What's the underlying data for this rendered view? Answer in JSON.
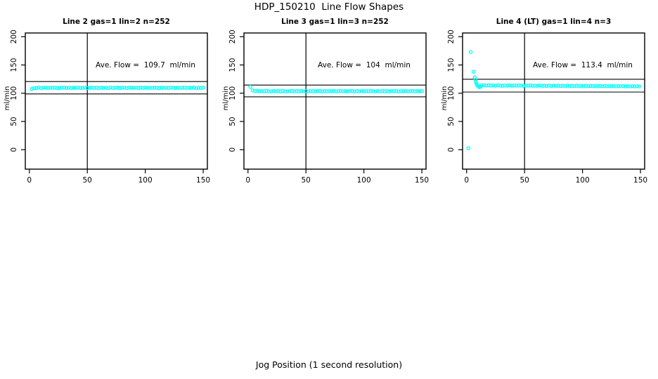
{
  "title": "HDP_150210  Line Flow Shapes",
  "xlabel": "Jog Position (1 second resolution)",
  "chart_data": [
    {
      "type": "scatter",
      "title": "Line 2 gas=1 lin=2 n=252",
      "ave_flow": 109.7,
      "ave_flow_text": "Ave. Flow =  109.7  ml/min",
      "ylabel": "ml/min",
      "x_ticks": [
        0,
        50,
        100,
        150
      ],
      "y_ticks": [
        0,
        50,
        100,
        150,
        200
      ],
      "xlim": [
        -3.5,
        153.6
      ],
      "ylim": [
        -34.4,
        206.6
      ],
      "vline_x": 50,
      "ref_lines": [
        120.7,
        98.7
      ],
      "point_color": "#00FFFF",
      "legend": null,
      "grid": false,
      "series": {
        "x_start": 2,
        "x_step": 2,
        "y": [
          107.5,
          109.0,
          109.3,
          109.8,
          109.0,
          109.6,
          109.9,
          109.2,
          109.7,
          109.3,
          110.0,
          109.4,
          109.0,
          109.7,
          109.9,
          109.3,
          109.6,
          109.1,
          109.8,
          109.4,
          110.0,
          109.2,
          109.6,
          109.9,
          109.1,
          109.5,
          109.8,
          109.3,
          109.7,
          109.0,
          109.9,
          109.4,
          109.6,
          109.1,
          110.0,
          109.3,
          109.7,
          109.8,
          109.2,
          109.6,
          109.9,
          109.1,
          109.5,
          110.0,
          109.3,
          109.7,
          109.2,
          109.8,
          109.4,
          110.0,
          109.1,
          109.6,
          109.3,
          109.9,
          109.5,
          109.0,
          109.8,
          109.4,
          109.7,
          109.2,
          110.0,
          109.5,
          109.1,
          109.8,
          109.3,
          109.7,
          109.9,
          109.2,
          109.6,
          109.4,
          110.0,
          109.1,
          109.7,
          109.4,
          109.8
        ]
      },
      "extra_points": []
    },
    {
      "type": "scatter",
      "title": "Line 3 gas=1 lin=3 n=252",
      "ave_flow": 104,
      "ave_flow_text": "Ave. Flow =  104  ml/min",
      "ylabel": "ml/min",
      "x_ticks": [
        0,
        50,
        100,
        150
      ],
      "y_ticks": [
        0,
        50,
        100,
        150,
        200
      ],
      "xlim": [
        -3.5,
        153.6
      ],
      "ylim": [
        -34.4,
        206.6
      ],
      "vline_x": 50,
      "ref_lines": [
        114.4,
        93.6
      ],
      "point_color": "#00FFFF",
      "legend": null,
      "grid": false,
      "series": {
        "x_start": 2,
        "x_step": 2,
        "y": [
          111.3,
          104.9,
          103.8,
          104.2,
          103.5,
          104.0,
          103.4,
          104.1,
          103.6,
          103.2,
          104.0,
          103.5,
          103.9,
          103.3,
          104.1,
          103.6,
          103.2,
          103.8,
          104.0,
          103.4,
          103.9,
          103.3,
          104.1,
          103.5,
          103.8,
          103.2,
          104.0,
          103.6,
          103.3,
          103.9,
          104.1,
          103.4,
          103.8,
          103.3,
          104.0,
          103.5,
          103.9,
          103.2,
          103.7,
          104.1,
          103.4,
          103.8,
          103.3,
          104.0,
          103.6,
          103.2,
          103.9,
          103.5,
          104.1,
          103.3,
          103.8,
          103.4,
          104.0,
          103.6,
          103.2,
          103.9,
          103.4,
          104.1,
          103.5,
          103.8,
          103.3,
          103.9,
          103.6,
          104.0,
          103.2,
          103.8,
          103.5,
          104.1,
          103.4,
          103.7,
          103.9,
          103.3,
          104.0,
          103.5,
          103.8
        ]
      },
      "extra_points": []
    },
    {
      "type": "scatter",
      "title": "Line 4 (LT) gas=1 lin=4 n=3",
      "ave_flow": 113.4,
      "ave_flow_text": "Ave. Flow =  113.4  ml/min",
      "ylabel": "ml/min",
      "x_ticks": [
        0,
        50,
        100,
        150
      ],
      "y_ticks": [
        0,
        50,
        100,
        150,
        200
      ],
      "xlim": [
        -3.5,
        153.6
      ],
      "ylim": [
        -34.4,
        206.6
      ],
      "vline_x": 50,
      "ref_lines": [
        124.7,
        102.1
      ],
      "point_color": "#00FFFF",
      "legend": null,
      "grid": false,
      "series": {
        "x_start": 13,
        "x_step": 2,
        "y": [
          113.9,
          114.2,
          113.6,
          114.0,
          113.4,
          113.8,
          113.3,
          114.0,
          113.5,
          113.1,
          113.8,
          113.4,
          113.9,
          113.2,
          113.7,
          113.3,
          113.9,
          113.5,
          113.0,
          113.6,
          113.2,
          113.8,
          113.1,
          113.5,
          113.0,
          113.6,
          112.9,
          113.4,
          113.0,
          113.5,
          112.8,
          113.3,
          112.9,
          113.4,
          112.7,
          113.2,
          112.8,
          113.3,
          112.6,
          113.1,
          112.7,
          113.2,
          112.5,
          113.0,
          112.6,
          113.1,
          112.4,
          112.9,
          112.5,
          113.0,
          112.4,
          112.8,
          112.3,
          112.9,
          112.2,
          112.7,
          112.3,
          112.8,
          112.1,
          112.6,
          112.2,
          112.7,
          112.0,
          112.5,
          112.1,
          112.6,
          111.9,
          112.4,
          112.1
        ]
      },
      "extra_points": [
        [
          1.5,
          2.5
        ],
        [
          3.5,
          173
        ],
        [
          6,
          138
        ],
        [
          7,
          128
        ],
        [
          7.5,
          124
        ],
        [
          8,
          120
        ],
        [
          8.5,
          117
        ],
        [
          9,
          114.5
        ],
        [
          10,
          112
        ],
        [
          11,
          110.8
        ],
        [
          12,
          111.5
        ]
      ]
    }
  ]
}
